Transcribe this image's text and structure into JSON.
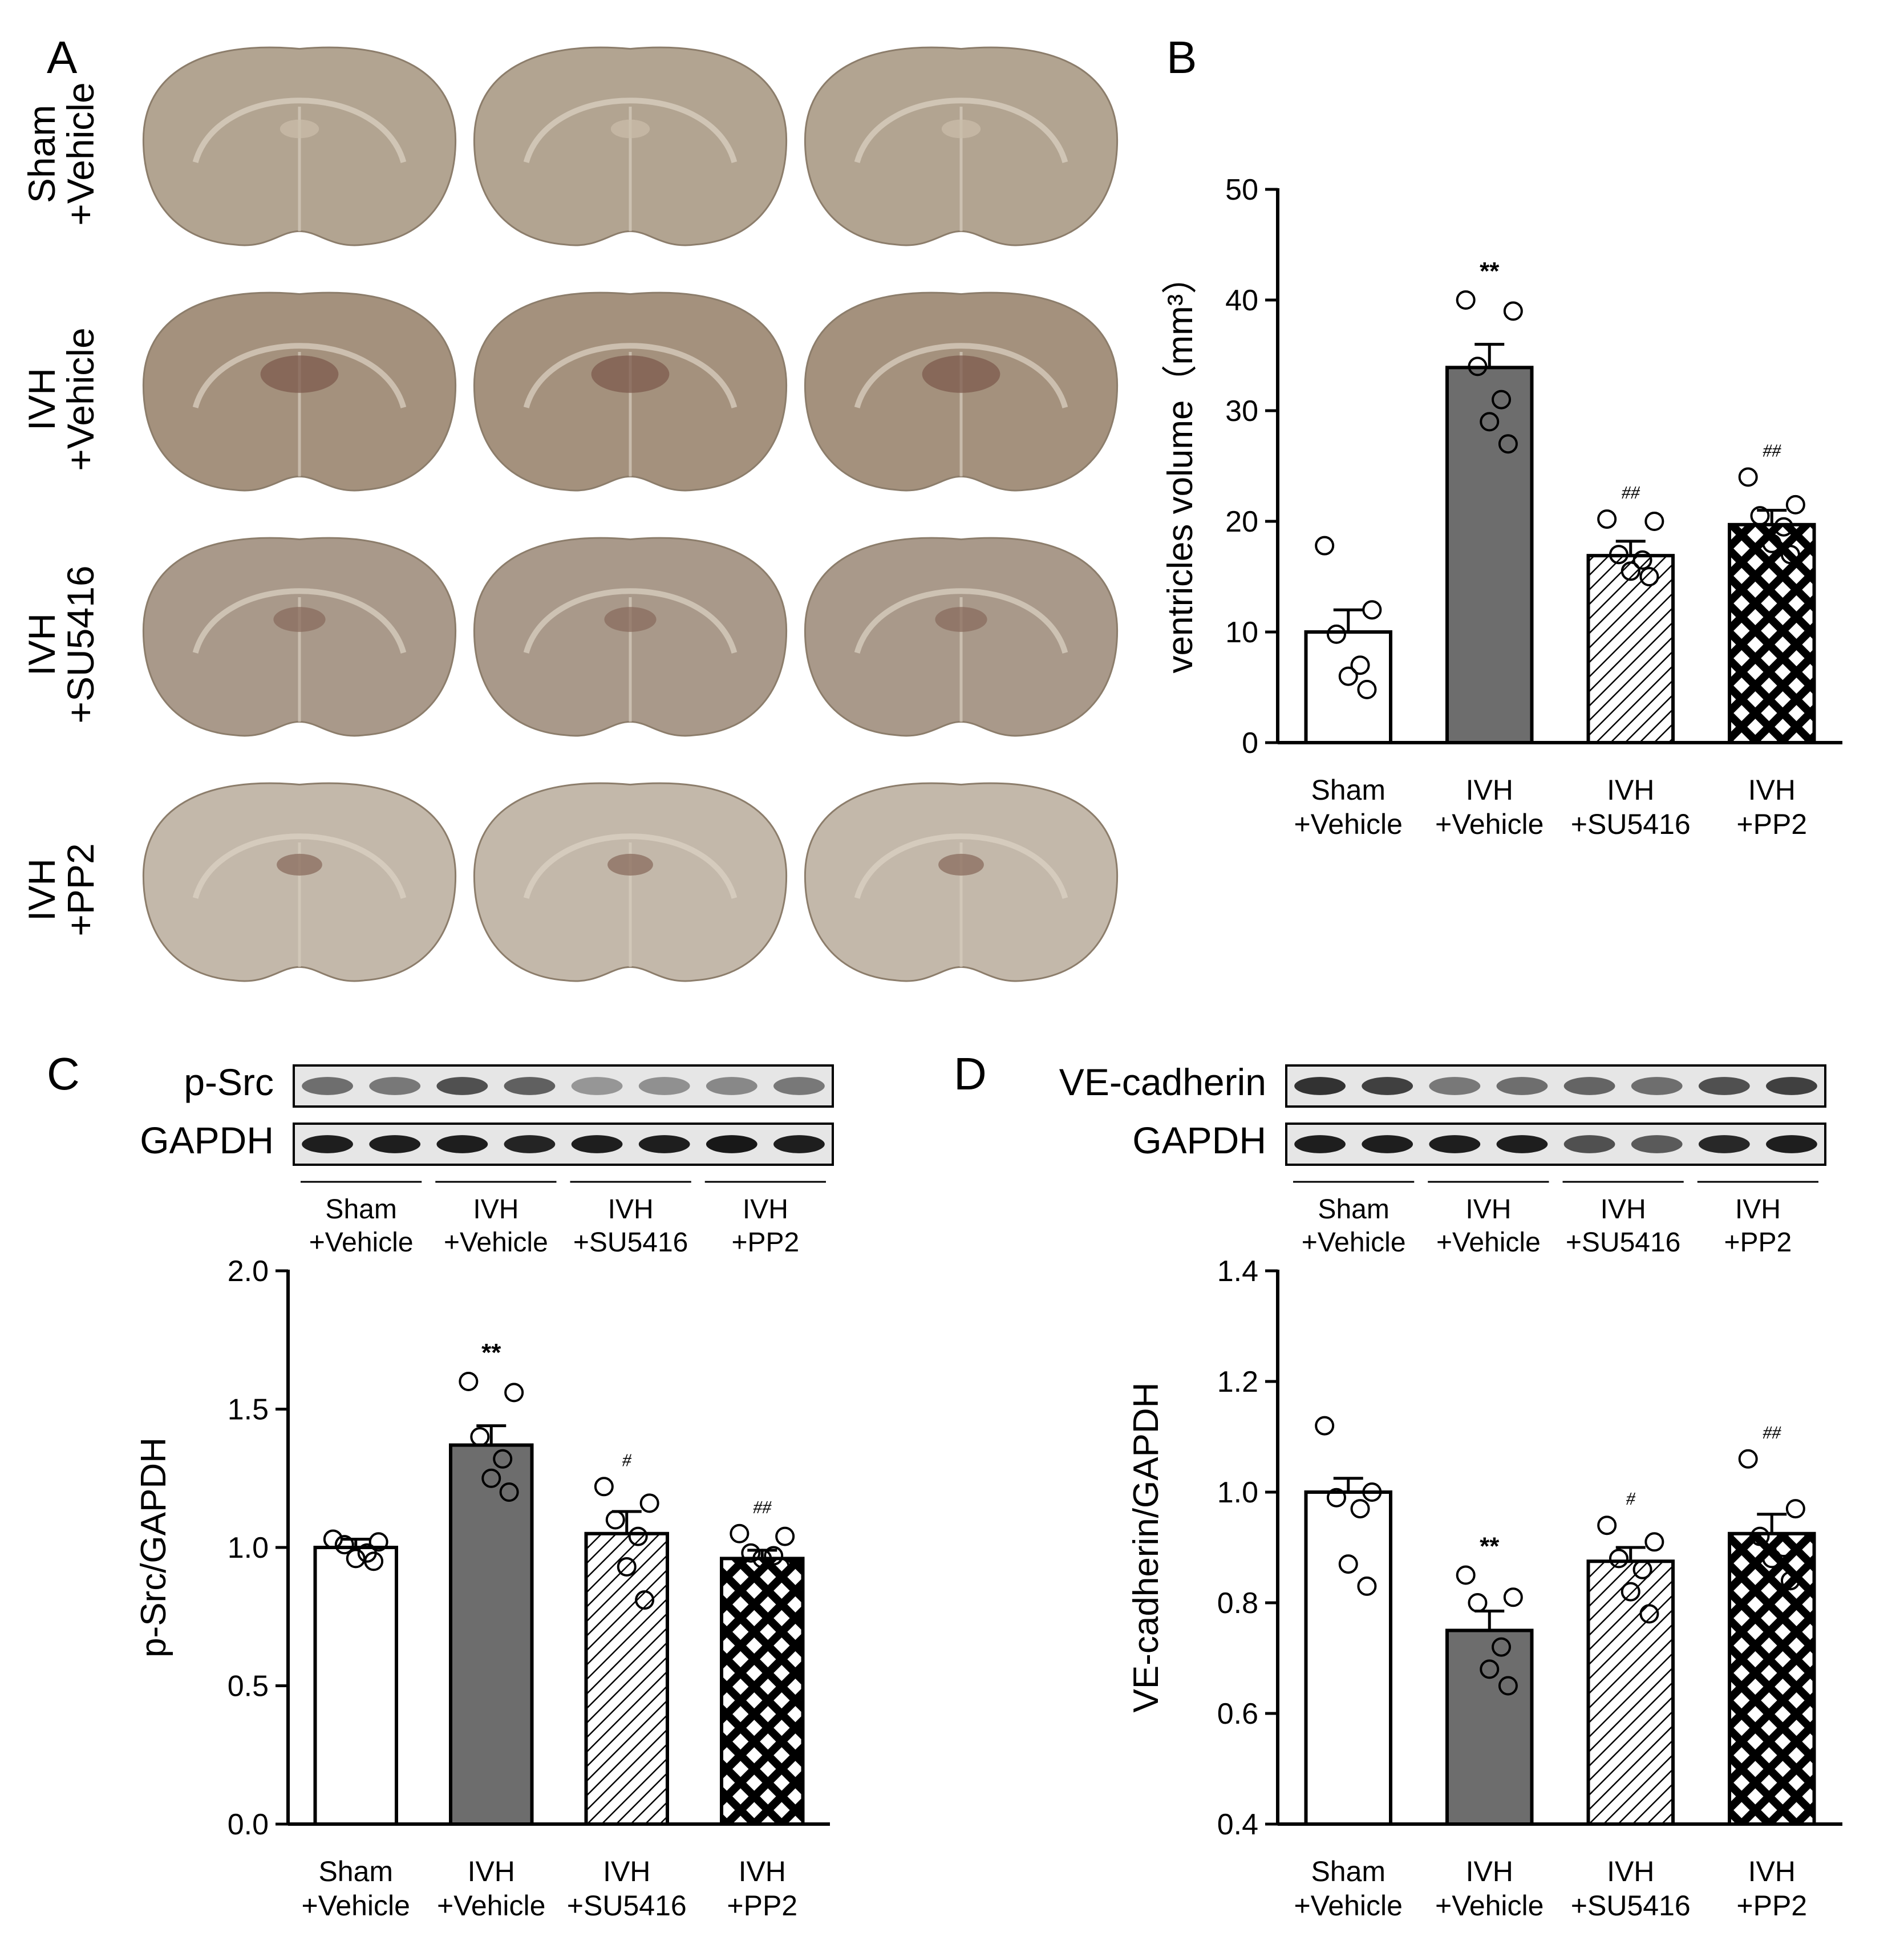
{
  "panel_labels": [
    "A",
    "B",
    "C",
    "D"
  ],
  "panel_a": {
    "row_labels": [
      [
        "Sham",
        "+Vehicle"
      ],
      [
        "IVH",
        "+Vehicle"
      ],
      [
        "IVH",
        "+SU5416"
      ],
      [
        "IVH",
        "+PP2"
      ]
    ],
    "row_tints": [
      "#b2a491",
      "#a4917d",
      "#a9998a",
      "#c3b8aa"
    ]
  },
  "groups": [
    [
      "Sham",
      "+Vehicle"
    ],
    [
      "IVH",
      "+Vehicle"
    ],
    [
      "IVH",
      "+SU5416"
    ],
    [
      "IVH",
      "+PP2"
    ]
  ],
  "bar_styles": [
    "white",
    "solid-gray",
    "diagonal-hatch",
    "crosshatch"
  ],
  "colors": {
    "solid_bar": "#6d6d6d",
    "axis": "#000000"
  },
  "blots": {
    "C": {
      "rows": [
        {
          "label": "p-Src",
          "intensity": [
            0.55,
            0.5,
            0.7,
            0.62,
            0.35,
            0.38,
            0.42,
            0.5
          ]
        },
        {
          "label": "GAPDH",
          "intensity": [
            0.95,
            0.95,
            0.95,
            0.92,
            0.95,
            0.95,
            0.98,
            0.95
          ]
        }
      ]
    },
    "D": {
      "rows": [
        {
          "label": "VE-cadherin",
          "intensity": [
            0.85,
            0.78,
            0.5,
            0.55,
            0.6,
            0.55,
            0.7,
            0.78
          ]
        },
        {
          "label": "GAPDH",
          "intensity": [
            0.95,
            0.95,
            0.95,
            0.95,
            0.7,
            0.65,
            0.9,
            0.95
          ]
        }
      ]
    }
  },
  "chart_data": [
    {
      "panel": "B",
      "type": "bar",
      "categories": [
        "Sham +Vehicle",
        "IVH +Vehicle",
        "IVH +SU5416",
        "IVH +PP2"
      ],
      "values": [
        10.0,
        33.9,
        16.9,
        19.7
      ],
      "errors": [
        2.0,
        2.1,
        1.3,
        1.3
      ],
      "points": [
        [
          17.8,
          12.0,
          9.8,
          7.0,
          6.0,
          4.8
        ],
        [
          40.0,
          39.0,
          34.0,
          31.0,
          29.0,
          27.0
        ],
        [
          20.2,
          20.0,
          17.0,
          16.5,
          15.5,
          15.0
        ],
        [
          24.0,
          21.5,
          20.5,
          19.5,
          18.0,
          17.0
        ]
      ],
      "annotations": [
        "",
        "**",
        "##",
        "##"
      ],
      "ylabel": "ventricles volume（mm³）",
      "ylim": [
        0,
        50
      ],
      "yticks": [
        0,
        10,
        20,
        30,
        40,
        50
      ]
    },
    {
      "panel": "C",
      "type": "bar",
      "categories": [
        "Sham +Vehicle",
        "IVH +Vehicle",
        "IVH +SU5416",
        "IVH +PP2"
      ],
      "values": [
        1.0,
        1.37,
        1.05,
        0.96
      ],
      "errors": [
        0.03,
        0.07,
        0.08,
        0.03
      ],
      "points": [
        [
          1.03,
          1.02,
          1.01,
          0.98,
          0.96,
          0.95
        ],
        [
          1.6,
          1.56,
          1.4,
          1.32,
          1.25,
          1.2
        ],
        [
          1.22,
          1.16,
          1.1,
          1.04,
          0.93,
          0.81
        ],
        [
          1.05,
          1.04,
          0.98,
          0.97,
          0.96,
          0.93
        ]
      ],
      "annotations": [
        "",
        "**",
        "#",
        "##"
      ],
      "ylabel": "p-Src/GAPDH",
      "ylim": [
        0.0,
        2.0
      ],
      "yticks": [
        0.0,
        0.5,
        1.0,
        1.5,
        2.0
      ]
    },
    {
      "panel": "D",
      "type": "bar",
      "categories": [
        "Sham +Vehicle",
        "IVH +Vehicle",
        "IVH +SU5416",
        "IVH +PP2"
      ],
      "values": [
        1.0,
        0.75,
        0.875,
        0.925
      ],
      "errors": [
        0.025,
        0.035,
        0.025,
        0.035
      ],
      "points": [
        [
          1.12,
          1.0,
          0.99,
          0.97,
          0.87,
          0.83
        ],
        [
          0.85,
          0.81,
          0.8,
          0.72,
          0.68,
          0.65
        ],
        [
          0.94,
          0.91,
          0.88,
          0.86,
          0.82,
          0.78
        ],
        [
          1.06,
          0.97,
          0.92,
          0.9,
          0.88,
          0.84
        ]
      ],
      "annotations": [
        "",
        "**",
        "#",
        "##"
      ],
      "ylabel": "VE-cadherin/GAPDH",
      "ylim": [
        0.4,
        1.4
      ],
      "yticks": [
        0.4,
        0.6,
        0.8,
        1.0,
        1.2,
        1.4
      ]
    }
  ]
}
